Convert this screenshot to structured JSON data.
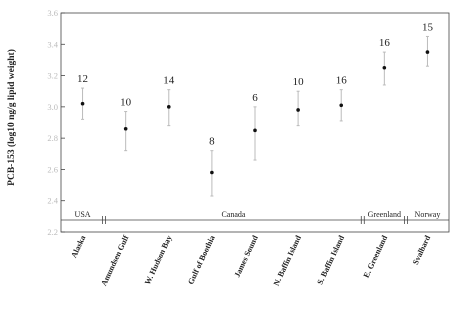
{
  "chart_data": {
    "type": "scatter",
    "style": "mean-with-error-bars",
    "ylabel": "PCB-153 (log10 ng/g lipid weight)",
    "xlabel": "",
    "ylim": [
      2.2,
      3.6
    ],
    "yticks": [
      "2.2",
      "2.4",
      "2.6",
      "2.8",
      "3.0",
      "3.2",
      "3.4",
      "3.6"
    ],
    "grid": false,
    "categories": [
      "Alaska",
      "Amundsen Gulf",
      "W. Hudson Bay",
      "Gulf of Boothia",
      "James Sound",
      "N. Baffin Island",
      "S. Baffin Island",
      "E. Greenland",
      "Svalbard"
    ],
    "values": [
      3.02,
      2.86,
      3.0,
      2.58,
      2.85,
      2.98,
      3.01,
      3.25,
      3.35
    ],
    "error_low": [
      2.92,
      2.72,
      2.88,
      2.43,
      2.66,
      2.88,
      2.91,
      3.14,
      3.26
    ],
    "error_high": [
      3.12,
      2.97,
      3.11,
      2.72,
      3.0,
      3.1,
      3.11,
      3.35,
      3.45
    ],
    "sample_sizes": [
      "12",
      "10",
      "14",
      "8",
      "6",
      "10",
      "16",
      "16",
      "15"
    ],
    "regions": [
      {
        "label": "USA",
        "start": 0,
        "end": 0
      },
      {
        "label": "Canada",
        "start": 1,
        "end": 6
      },
      {
        "label": "Greenland",
        "start": 7,
        "end": 7
      },
      {
        "label": "Norway",
        "start": 8,
        "end": 8
      }
    ],
    "colors": {
      "marker": "#111111",
      "error_bar": "#bbbbbb",
      "axis": "#444444"
    }
  }
}
